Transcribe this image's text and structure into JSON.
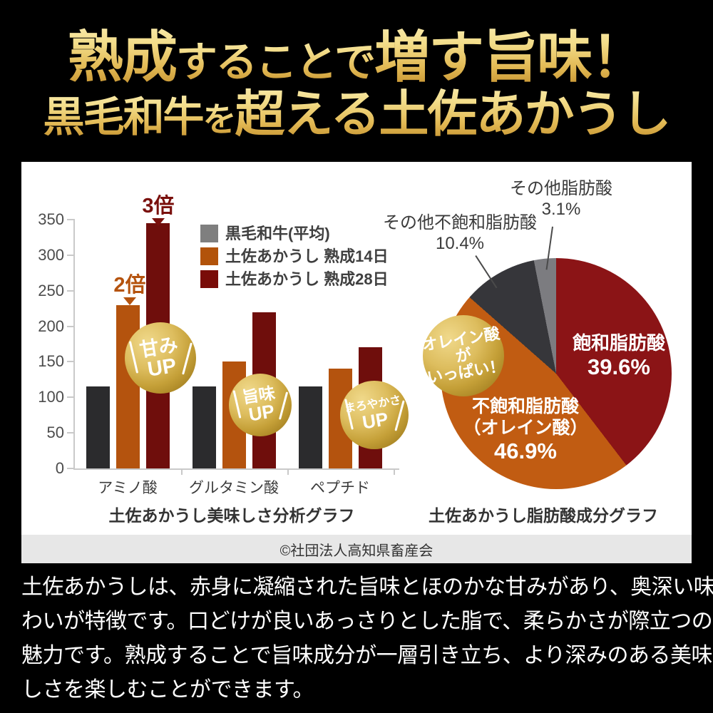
{
  "header": {
    "line1_parts": [
      "熟成",
      "することで",
      "増す旨味！"
    ],
    "line2_parts": [
      "黒毛和牛",
      "を",
      "超える土佐あかうし"
    ],
    "gold_color_top": "#f3dd8a",
    "gold_color_bottom": "#bd8826"
  },
  "chart_data": [
    {
      "type": "bar",
      "title": "土佐あかうし美味しさ分析グラフ",
      "categories": [
        "アミノ酸",
        "グルタミン酸",
        "ペプチド"
      ],
      "series": [
        {
          "name": "黒毛和牛(平均)",
          "color": "#2b2b2d",
          "legend_color": "#7f7f7f",
          "values": [
            115,
            115,
            115
          ]
        },
        {
          "name": "土佐あかうし 熟成14日",
          "color": "#b4530e",
          "legend_color": "#b2530a",
          "values": [
            230,
            150,
            140
          ]
        },
        {
          "name": "土佐あかうし 熟成28日",
          "color": "#6f0e0c",
          "legend_color": "#790c08",
          "values": [
            345,
            220,
            170
          ]
        }
      ],
      "ylim": [
        0,
        350
      ],
      "yticks": [
        0,
        50,
        100,
        150,
        200,
        250,
        300,
        350
      ],
      "grid": false,
      "legend_position": "top-right",
      "annotations": [
        {
          "text": "2倍",
          "category": "アミノ酸",
          "series": "土佐あかうし 熟成14日",
          "color": "#b5530e"
        },
        {
          "text": "3倍",
          "category": "アミノ酸",
          "series": "土佐あかうし 熟成28日",
          "color": "#7a100d"
        }
      ],
      "badges": [
        {
          "line1": "甘み",
          "line2": "UP"
        },
        {
          "line1": "旨味",
          "line2": "UP"
        },
        {
          "line1": "まろやかさ",
          "line2": "UP"
        }
      ]
    },
    {
      "type": "pie",
      "title": "土佐あかうし脂肪酸成分グラフ",
      "start_angle_deg": 0,
      "direction": "clockwise",
      "slices": [
        {
          "label": "飽和脂肪酸",
          "value": 39.6,
          "display": "39.6%",
          "color": "#8b1416",
          "label_position": "inside"
        },
        {
          "label": "不飽和脂肪酸（オレイン酸）",
          "label_lines": [
            "不飽和脂肪酸",
            "（オレイン酸）"
          ],
          "value": 46.9,
          "display": "46.9%",
          "color": "#c15c12",
          "label_position": "inside"
        },
        {
          "label": "その他不飽和脂肪酸",
          "value": 10.4,
          "display": "10.4%",
          "color": "#36363a",
          "label_position": "outside"
        },
        {
          "label": "その他脂肪酸",
          "value": 3.1,
          "display": "3.1%",
          "color": "#7c7c80",
          "label_position": "outside"
        }
      ],
      "badge": {
        "line1": "オレイン酸が",
        "line2": "いっぱい！"
      }
    }
  ],
  "copyright": "©社団法人高知県畜産会",
  "footer": {
    "lines": [
      "土佐あかうしは、赤身に凝縮された旨味とほのかな甘みがあり、奥深い味",
      "わいが特徴です。口どけが良いあっさりとした脂で、柔らかさが際立つのも",
      "魅力です。熟成することで旨味成分が一層引き立ち、より深みのある美味",
      "しさを楽しむことができます。"
    ]
  }
}
